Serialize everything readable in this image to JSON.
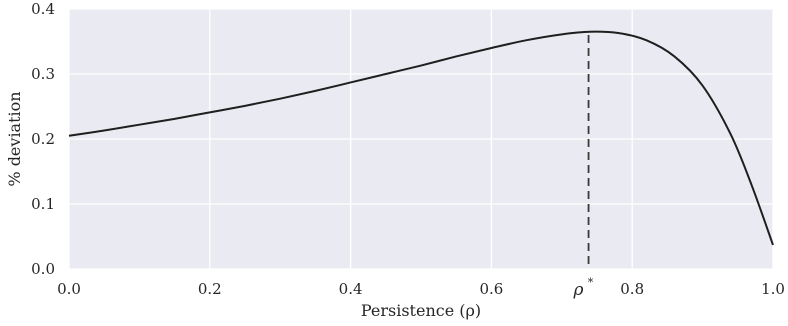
{
  "chart_data": {
    "type": "line",
    "xlabel": "Persistence (ρ)",
    "ylabel": "% deviation",
    "xlim": [
      0.0,
      1.0
    ],
    "ylim": [
      0.0,
      0.4
    ],
    "xticks": [
      "0.0",
      "0.2",
      "0.4",
      "0.6",
      "0.8",
      "1.0"
    ],
    "yticks": [
      "0.0",
      "0.1",
      "0.2",
      "0.3",
      "0.4"
    ],
    "grid": true,
    "series": [
      {
        "x": [
          0.0,
          0.05,
          0.1,
          0.15,
          0.2,
          0.25,
          0.3,
          0.35,
          0.4,
          0.45,
          0.5,
          0.55,
          0.6,
          0.65,
          0.7,
          0.74,
          0.78,
          0.82,
          0.86,
          0.9,
          0.94,
          0.97,
          1.0
        ],
        "y": [
          0.205,
          0.213,
          0.222,
          0.231,
          0.241,
          0.251,
          0.262,
          0.274,
          0.287,
          0.3,
          0.313,
          0.327,
          0.34,
          0.352,
          0.361,
          0.365,
          0.363,
          0.352,
          0.327,
          0.282,
          0.207,
          0.128,
          0.037
        ],
        "color": "#1f1f1f"
      }
    ],
    "annotations": [
      {
        "label": "ρ",
        "superscript": "*",
        "x": 0.738,
        "y_top": 0.36,
        "style": "dashed"
      }
    ]
  },
  "colors": {
    "plot_background": "#eaeaf2",
    "grid": "#ffffff",
    "line": "#1f1f1f",
    "text": "#262626"
  }
}
